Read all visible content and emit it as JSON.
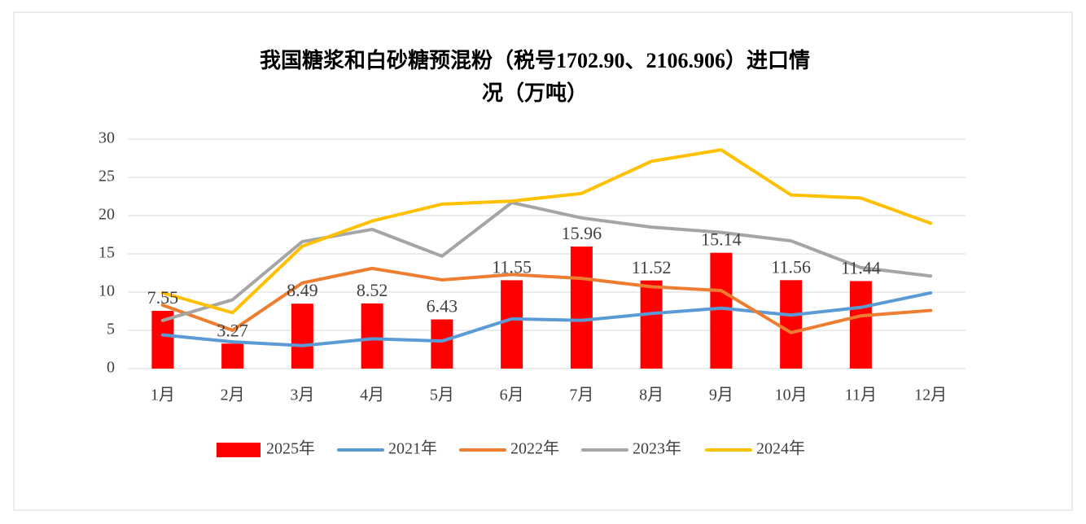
{
  "chart_data": {
    "type": "bar",
    "title": [
      "我国糖浆和白砂糖预混粉（税号1702.90、2106.906）进口情",
      "况（万吨）"
    ],
    "categories": [
      "1月",
      "2月",
      "3月",
      "4月",
      "5月",
      "6月",
      "7月",
      "8月",
      "9月",
      "10月",
      "11月",
      "12月"
    ],
    "ylim": [
      0,
      30
    ],
    "yticks": [
      0,
      5,
      10,
      15,
      20,
      25,
      30
    ],
    "grid": true,
    "series": [
      {
        "name": "2025年",
        "type": "bar",
        "color": "#ff0000",
        "values": [
          7.55,
          3.27,
          8.49,
          8.52,
          6.43,
          11.55,
          15.96,
          11.52,
          15.14,
          11.56,
          11.44,
          null
        ]
      },
      {
        "name": "2021年",
        "type": "line",
        "color": "#5b9bd5",
        "values": [
          4.4,
          3.5,
          3.0,
          3.9,
          3.6,
          6.5,
          6.3,
          7.2,
          7.9,
          7.0,
          8.0,
          9.9
        ]
      },
      {
        "name": "2022年",
        "type": "line",
        "color": "#ed7d31",
        "values": [
          8.3,
          5.0,
          11.2,
          13.1,
          11.6,
          12.3,
          11.8,
          10.7,
          10.2,
          4.7,
          6.9,
          7.6
        ]
      },
      {
        "name": "2023年",
        "type": "line",
        "color": "#a5a5a5",
        "values": [
          6.3,
          9.0,
          16.6,
          18.2,
          14.7,
          21.7,
          19.7,
          18.5,
          17.8,
          16.7,
          13.2,
          12.1
        ]
      },
      {
        "name": "2024年",
        "type": "line",
        "color": "#ffc000",
        "values": [
          9.9,
          7.3,
          16.0,
          19.3,
          21.5,
          21.9,
          22.9,
          27.1,
          28.6,
          22.7,
          22.3,
          19.0
        ]
      }
    ]
  }
}
